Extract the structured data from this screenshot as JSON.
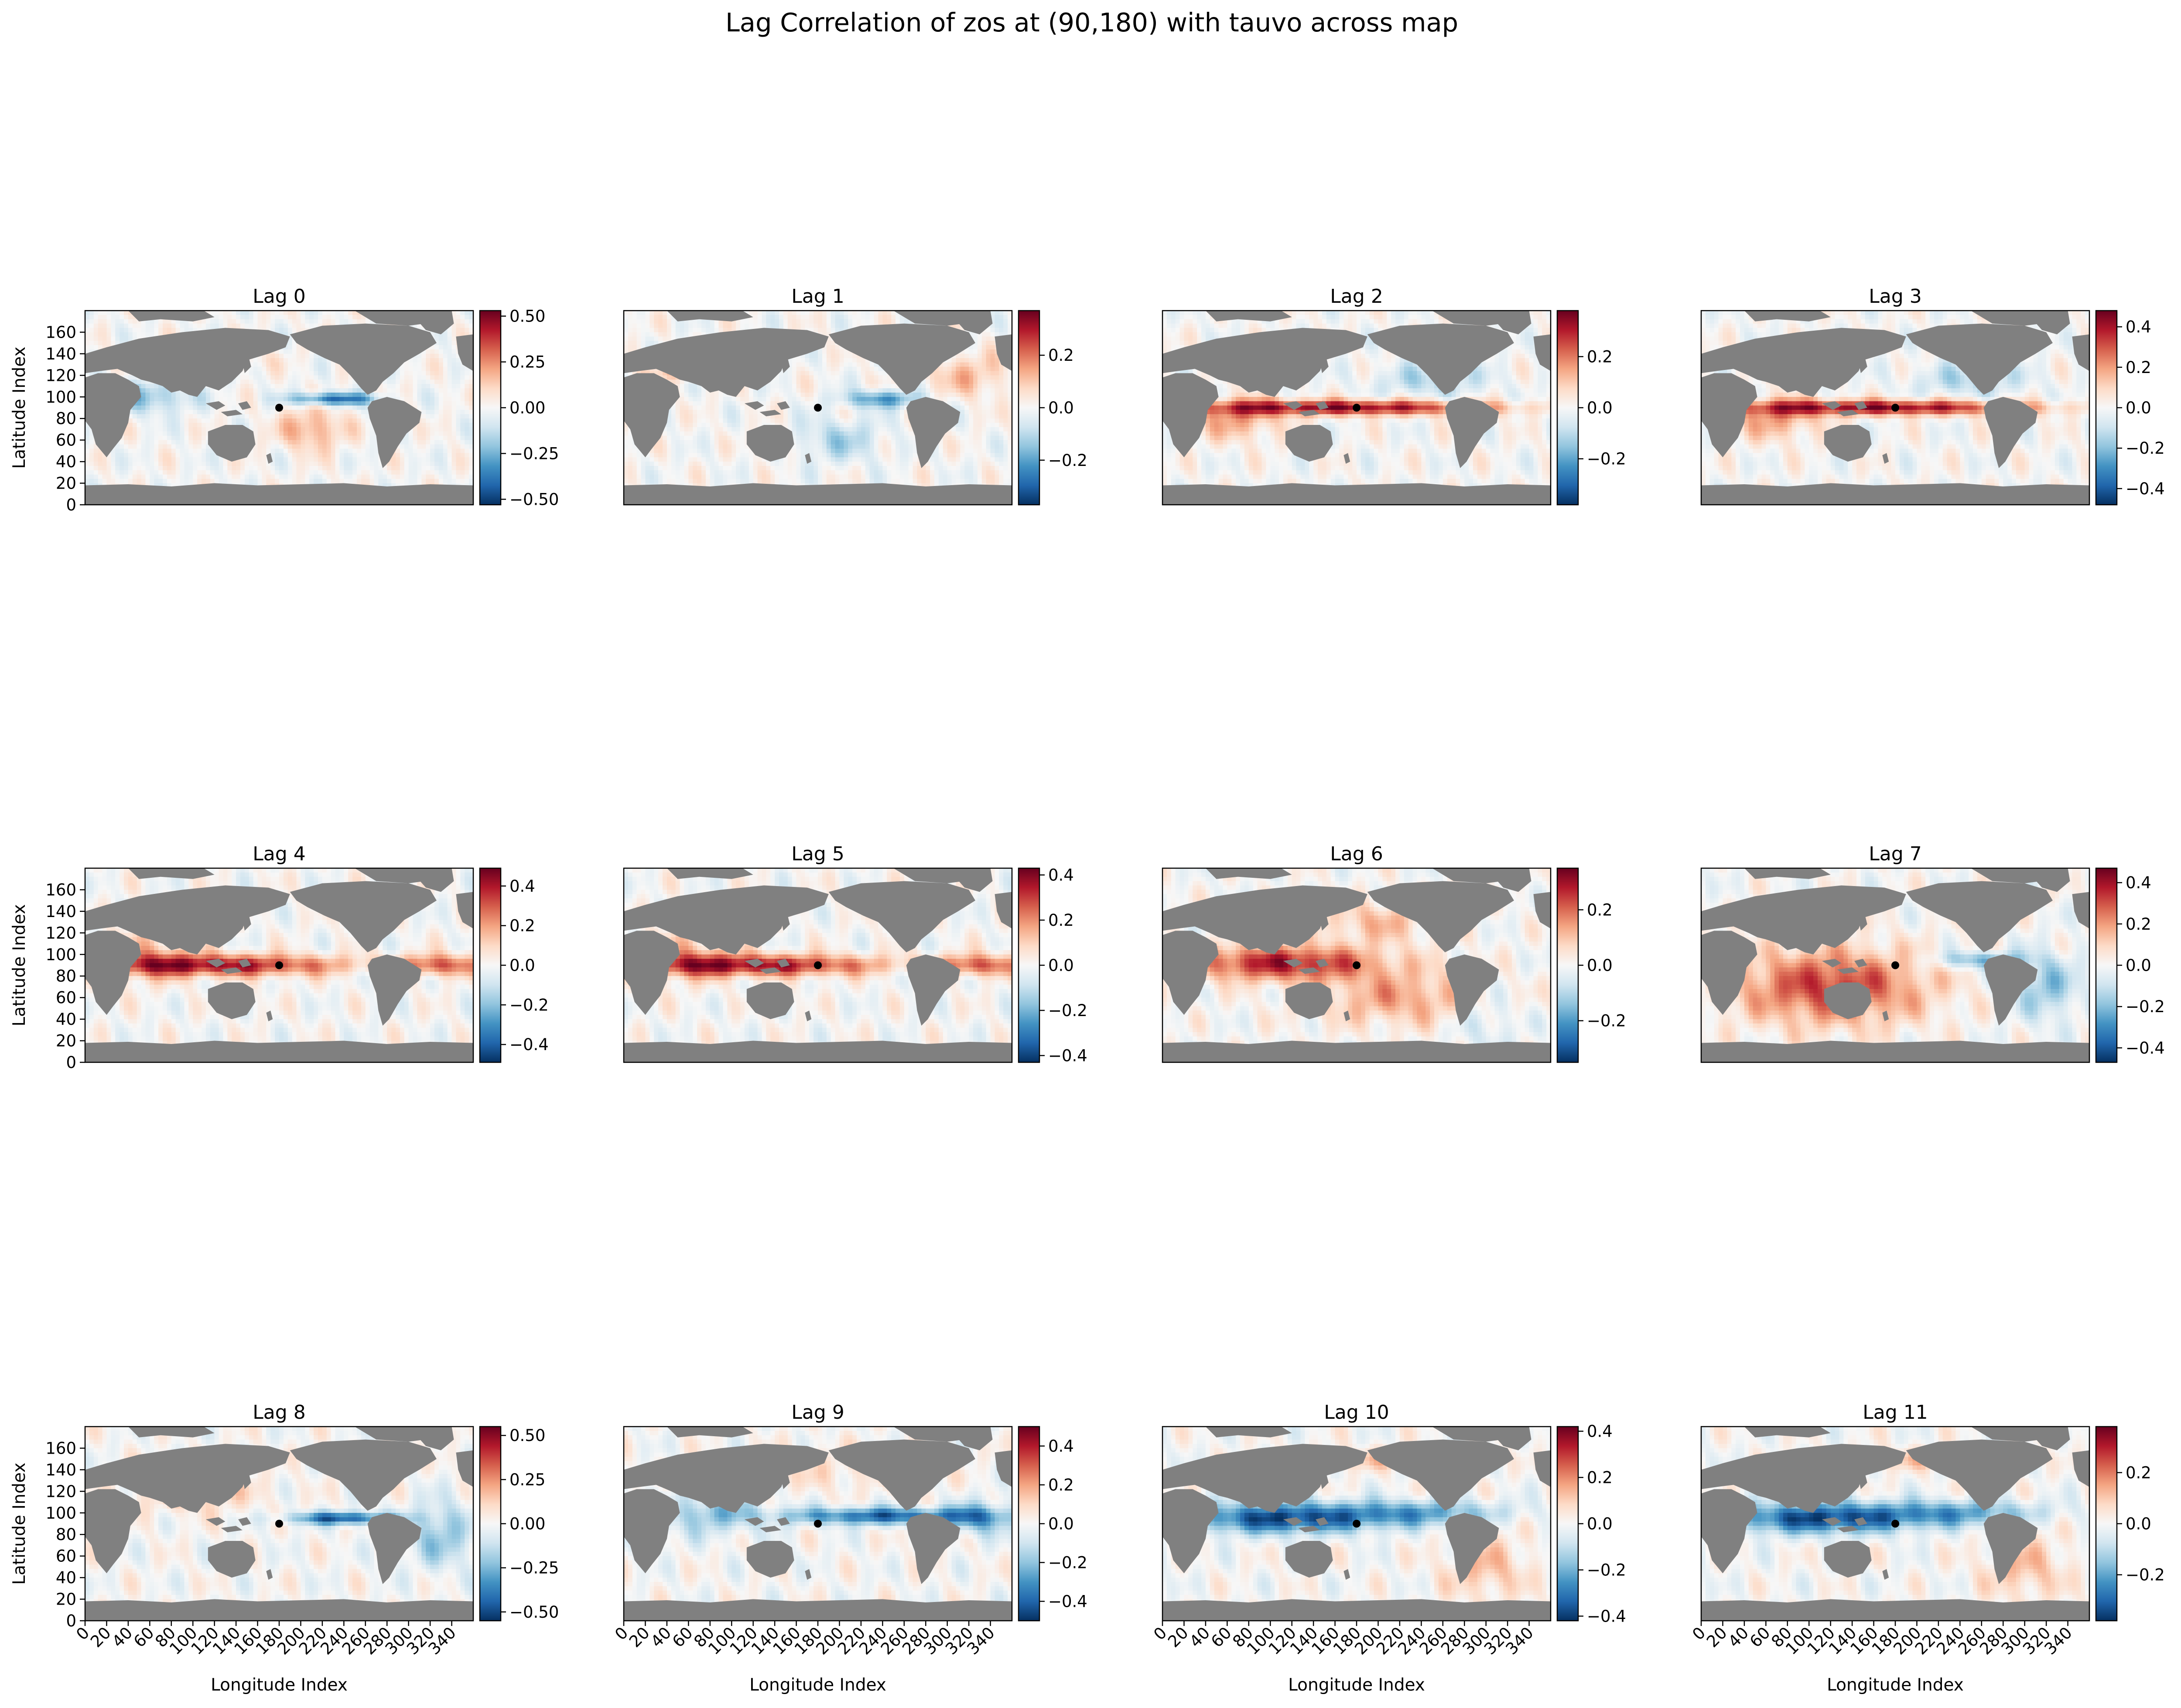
{
  "title": "Lag Correlation of zos at (90,180) with tauvo across map",
  "colors": {
    "land": "#808080",
    "marker": "#000000",
    "cmap_neg": "#053061",
    "cmap_mid": "#f7f7f7",
    "cmap_pos": "#67001f",
    "colormap_name": "RdBu_r"
  },
  "chart_data": {
    "type": "heatmap",
    "grid_rows": 3,
    "grid_cols": 4,
    "xlabel": "Longitude Index",
    "ylabel": "Latitude Index",
    "xlim": [
      0,
      360
    ],
    "ylim": [
      0,
      180
    ],
    "x_ticks": [
      0,
      20,
      40,
      60,
      80,
      100,
      120,
      140,
      160,
      180,
      200,
      220,
      240,
      260,
      280,
      300,
      320,
      340
    ],
    "y_ticks": [
      0,
      20,
      40,
      60,
      80,
      100,
      120,
      140,
      160
    ],
    "marker_point": {
      "x": 180,
      "y": 90
    },
    "panels": [
      {
        "title": "Lag 0",
        "vmax": 0.53,
        "ticks": [
          "0.50",
          "0.25",
          "0.00",
          "−0.25",
          "−0.50"
        ],
        "tickvals": [
          0.5,
          0.25,
          0,
          -0.25,
          -0.5
        ],
        "pattern": 0
      },
      {
        "title": "Lag 1",
        "vmax": 0.37,
        "ticks": [
          "0.2",
          "0.0",
          "−0.2"
        ],
        "tickvals": [
          0.2,
          0,
          -0.2
        ],
        "pattern": 1
      },
      {
        "title": "Lag 2",
        "vmax": 0.38,
        "ticks": [
          "0.2",
          "0.0",
          "−0.2"
        ],
        "tickvals": [
          0.2,
          0,
          -0.2
        ],
        "pattern": 2
      },
      {
        "title": "Lag 3",
        "vmax": 0.48,
        "ticks": [
          "0.4",
          "0.2",
          "0.0",
          "−0.2",
          "−0.4"
        ],
        "tickvals": [
          0.4,
          0.2,
          0,
          -0.2,
          -0.4
        ],
        "pattern": 2
      },
      {
        "title": "Lag 4",
        "vmax": 0.49,
        "ticks": [
          "0.4",
          "0.2",
          "0.0",
          "−0.2",
          "−0.4"
        ],
        "tickvals": [
          0.4,
          0.2,
          0,
          -0.2,
          -0.4
        ],
        "pattern": 3
      },
      {
        "title": "Lag 5",
        "vmax": 0.43,
        "ticks": [
          "0.4",
          "0.2",
          "0.0",
          "−0.2",
          "−0.4"
        ],
        "tickvals": [
          0.4,
          0.2,
          0,
          -0.2,
          -0.4
        ],
        "pattern": 3
      },
      {
        "title": "Lag 6",
        "vmax": 0.35,
        "ticks": [
          "0.2",
          "0.0",
          "−0.2"
        ],
        "tickvals": [
          0.2,
          0,
          -0.2
        ],
        "pattern": 4
      },
      {
        "title": "Lag 7",
        "vmax": 0.47,
        "ticks": [
          "0.4",
          "0.2",
          "0.0",
          "−0.2",
          "−0.4"
        ],
        "tickvals": [
          0.4,
          0.2,
          0,
          -0.2,
          -0.4
        ],
        "pattern": 5
      },
      {
        "title": "Lag 8",
        "vmax": 0.55,
        "ticks": [
          "0.50",
          "0.25",
          "0.00",
          "−0.25",
          "−0.50"
        ],
        "tickvals": [
          0.5,
          0.25,
          0,
          -0.25,
          -0.5
        ],
        "pattern": 6
      },
      {
        "title": "Lag 9",
        "vmax": 0.5,
        "ticks": [
          "0.4",
          "0.2",
          "0.0",
          "−0.2",
          "−0.4"
        ],
        "tickvals": [
          0.4,
          0.2,
          0,
          -0.2,
          -0.4
        ],
        "pattern": 7
      },
      {
        "title": "Lag 10",
        "vmax": 0.42,
        "ticks": [
          "0.4",
          "0.2",
          "0.0",
          "−0.2",
          "−0.4"
        ],
        "tickvals": [
          0.4,
          0.2,
          0,
          -0.2,
          -0.4
        ],
        "pattern": 8
      },
      {
        "title": "Lag 11",
        "vmax": 0.38,
        "ticks": [
          "0.2",
          "0.0",
          "−0.2"
        ],
        "tickvals": [
          0.2,
          0,
          -0.2
        ],
        "pattern": 8
      }
    ]
  }
}
